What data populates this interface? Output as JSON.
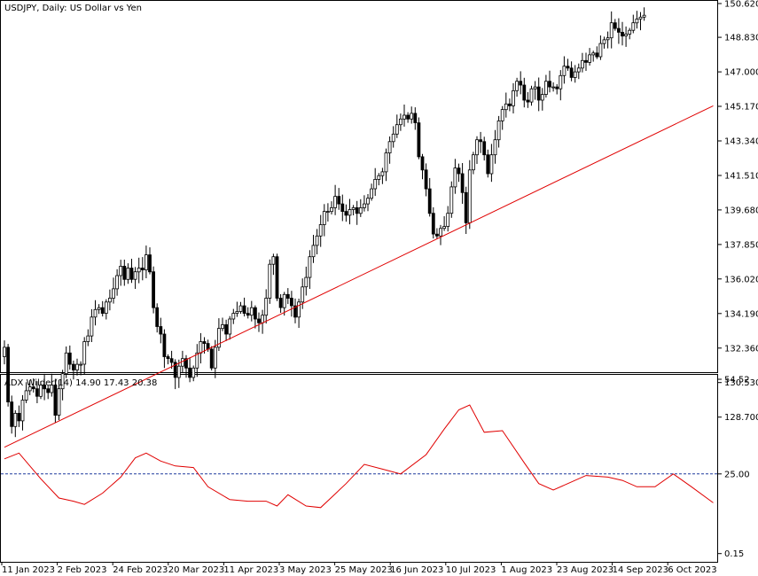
{
  "main_title": "USDJPY, Daily:  US Dollar vs Yen",
  "colors": {
    "background": "#ffffff",
    "candle": "#000000",
    "trendline": "#e00000",
    "adx_line": "#e00000",
    "level_line": "#1f3a9e"
  },
  "chart_data": [
    {
      "type": "candlestick",
      "title": "USDJPY, Daily:  US Dollar vs Yen",
      "y_ticks": [
        "150.620",
        "148.830",
        "147.000",
        "145.170",
        "143.340",
        "141.510",
        "139.680",
        "137.850",
        "136.020",
        "134.190",
        "132.360",
        "130.530",
        "128.700"
      ],
      "x_ticks": [
        "11 Jan 2023",
        "2 Feb 2023",
        "24 Feb 2023",
        "20 Mar 2023",
        "11 Apr 2023",
        "3 May 2023",
        "25 May 2023",
        "16 Jun 2023",
        "10 Jul 2023",
        "1 Aug 2023",
        "23 Aug 2023",
        "14 Sep 2023",
        "6 Oct 2023"
      ],
      "ylim": [
        127.0,
        150.85
      ],
      "grid": false,
      "close_series": [
        132.4,
        129.5,
        128.2,
        128.9,
        128.5,
        129.6,
        130.1,
        130.3,
        130.2,
        129.8,
        130.4,
        130.2,
        130.0,
        130.4,
        128.8,
        130.2,
        131.0,
        132.1,
        131.5,
        131.2,
        131.5,
        131.5,
        132.7,
        133.0,
        134.0,
        134.4,
        134.5,
        134.2,
        134.8,
        135.0,
        135.5,
        136.2,
        136.7,
        136.0,
        136.6,
        136.0,
        136.4,
        136.6,
        136.5,
        137.3,
        136.4,
        134.5,
        133.5,
        133.1,
        131.9,
        131.8,
        131.6,
        130.8,
        131.4,
        131.8,
        131.3,
        130.8,
        131.3,
        132.1,
        132.7,
        132.6,
        132.3,
        131.3,
        132.4,
        133.4,
        133.6,
        133.1,
        133.9,
        134.2,
        134.3,
        134.6,
        134.2,
        134.1,
        134.5,
        133.9,
        133.7,
        134.1,
        135.0,
        136.8,
        137.2,
        135.0,
        134.5,
        135.2,
        135.0,
        134.6,
        134.0,
        134.8,
        135.6,
        136.1,
        137.2,
        137.8,
        138.3,
        138.9,
        139.6,
        139.6,
        139.8,
        140.4,
        140.0,
        139.6,
        139.4,
        139.7,
        139.8,
        139.5,
        139.8,
        140.0,
        140.3,
        140.8,
        141.3,
        141.5,
        141.7,
        142.7,
        143.3,
        143.7,
        144.2,
        144.5,
        144.7,
        144.5,
        144.8,
        144.3,
        142.5,
        141.8,
        140.8,
        139.5,
        138.4,
        138.3,
        138.7,
        138.8,
        139.5,
        140.9,
        141.9,
        141.6,
        140.6,
        139.0,
        141.8,
        142.6,
        143.4,
        143.3,
        142.6,
        141.6,
        142.6,
        143.4,
        144.4,
        145.0,
        145.3,
        145.2,
        146.0,
        146.5,
        146.3,
        145.5,
        145.4,
        146.1,
        146.2,
        145.5,
        145.8,
        146.5,
        146.2,
        146.2,
        146.1,
        146.8,
        147.3,
        147.2,
        146.7,
        147.0,
        147.2,
        147.6,
        147.5,
        147.9,
        148.0,
        147.8,
        148.5,
        148.7,
        148.8,
        149.6,
        149.3,
        149.1,
        148.9,
        149.0,
        149.2,
        149.6,
        149.8,
        149.9,
        150.0
      ],
      "trendline": {
        "from": [
          0,
          127.1
        ],
        "to": [
          195,
          145.2
        ]
      }
    },
    {
      "type": "line",
      "title": "ADX Wilder(14) 14.90 17.43 20.38",
      "y_ticks": [
        "54.52",
        "25.00",
        "0.15"
      ],
      "ylim": [
        0.15,
        54.52
      ],
      "level": 25.0,
      "x_ticks": [
        "11 Jan 2023",
        "2 Feb 2023",
        "24 Feb 2023",
        "20 Mar 2023",
        "11 Apr 2023",
        "3 May 2023",
        "25 May 2023",
        "16 Jun 2023",
        "10 Jul 2023",
        "1 Aug 2023",
        "23 Aug 2023",
        "14 Sep 2023",
        "6 Oct 2023"
      ],
      "values": [
        [
          0,
          29.7
        ],
        [
          4,
          31.5
        ],
        [
          10,
          23.5
        ],
        [
          15,
          17.5
        ],
        [
          19,
          16.5
        ],
        [
          22,
          15.5
        ],
        [
          27,
          19
        ],
        [
          32,
          24
        ],
        [
          36,
          30
        ],
        [
          39,
          31.5
        ],
        [
          43,
          29
        ],
        [
          47,
          27.5
        ],
        [
          52,
          27
        ],
        [
          56,
          21
        ],
        [
          62,
          17
        ],
        [
          67,
          16.5
        ],
        [
          72,
          16.5
        ],
        [
          75,
          15
        ],
        [
          78,
          18.5
        ],
        [
          83,
          15
        ],
        [
          87,
          14.5
        ],
        [
          94,
          22
        ],
        [
          99,
          28
        ],
        [
          104,
          26.5
        ],
        [
          109,
          25
        ],
        [
          116,
          31
        ],
        [
          121,
          39
        ],
        [
          125,
          45
        ],
        [
          128,
          46.5
        ],
        [
          132,
          38
        ],
        [
          137,
          38.5
        ],
        [
          143,
          28.5
        ],
        [
          147,
          22
        ],
        [
          151,
          20
        ],
        [
          155,
          22
        ],
        [
          160,
          24.5
        ],
        [
          166,
          24
        ],
        [
          170,
          23
        ],
        [
          174,
          21
        ],
        [
          179,
          21
        ],
        [
          184,
          25
        ],
        [
          189,
          21
        ],
        [
          195,
          16
        ]
      ]
    }
  ]
}
